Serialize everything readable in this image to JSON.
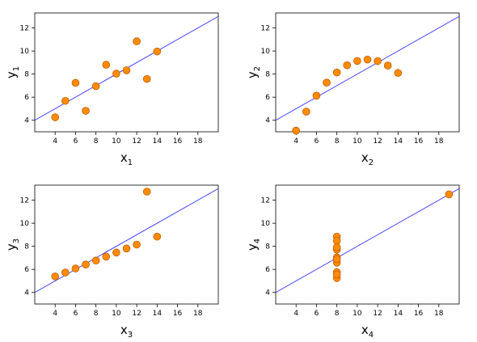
{
  "chart_data": [
    {
      "type": "scatter",
      "xlabel": "x",
      "xlabel_sub": "1",
      "ylabel": "y",
      "ylabel_sub": "1",
      "xlim": [
        2,
        20
      ],
      "ylim": [
        3,
        13.3
      ],
      "xticks": [
        4,
        6,
        8,
        10,
        12,
        14,
        16,
        18
      ],
      "yticks": [
        4,
        6,
        8,
        10,
        12
      ],
      "x": [
        4,
        5,
        6,
        7,
        8,
        9,
        10,
        11,
        12,
        13,
        14
      ],
      "y": [
        4.26,
        5.68,
        7.24,
        4.82,
        6.95,
        8.81,
        8.04,
        8.33,
        10.84,
        7.58,
        9.96
      ],
      "regression": {
        "intercept": 3.0,
        "slope": 0.5
      },
      "point_color": "#ff8c00",
      "line_color": "#3333ff",
      "grid": false
    },
    {
      "type": "scatter",
      "xlabel": "x",
      "xlabel_sub": "2",
      "ylabel": "y",
      "ylabel_sub": "2",
      "xlim": [
        2,
        20
      ],
      "ylim": [
        3,
        13.3
      ],
      "xticks": [
        4,
        6,
        8,
        10,
        12,
        14,
        16,
        18
      ],
      "yticks": [
        4,
        6,
        8,
        10,
        12
      ],
      "x": [
        4,
        5,
        6,
        7,
        8,
        9,
        10,
        11,
        12,
        13,
        14
      ],
      "y": [
        3.1,
        4.74,
        6.13,
        7.26,
        8.14,
        8.77,
        9.14,
        9.26,
        9.13,
        8.74,
        8.1
      ],
      "regression": {
        "intercept": 3.0,
        "slope": 0.5
      },
      "point_color": "#ff8c00",
      "line_color": "#3333ff",
      "grid": false
    },
    {
      "type": "scatter",
      "xlabel": "x",
      "xlabel_sub": "3",
      "ylabel": "y",
      "ylabel_sub": "3",
      "xlim": [
        2,
        20
      ],
      "ylim": [
        3,
        13.3
      ],
      "xticks": [
        4,
        6,
        8,
        10,
        12,
        14,
        16,
        18
      ],
      "yticks": [
        4,
        6,
        8,
        10,
        12
      ],
      "x": [
        4,
        5,
        6,
        7,
        8,
        9,
        10,
        11,
        12,
        13,
        14
      ],
      "y": [
        5.39,
        5.73,
        6.08,
        6.42,
        6.77,
        7.11,
        7.46,
        7.81,
        8.15,
        12.74,
        8.84
      ],
      "regression": {
        "intercept": 3.0,
        "slope": 0.5
      },
      "point_color": "#ff8c00",
      "line_color": "#3333ff",
      "grid": false
    },
    {
      "type": "scatter",
      "xlabel": "x",
      "xlabel_sub": "4",
      "ylabel": "y",
      "ylabel_sub": "4",
      "xlim": [
        2,
        20
      ],
      "ylim": [
        3,
        13.3
      ],
      "xticks": [
        4,
        6,
        8,
        10,
        12,
        14,
        16,
        18
      ],
      "yticks": [
        4,
        6,
        8,
        10,
        12
      ],
      "x": [
        8,
        8,
        8,
        8,
        8,
        8,
        8,
        19,
        8,
        8,
        8
      ],
      "y": [
        6.58,
        5.76,
        7.71,
        8.84,
        8.47,
        7.04,
        5.25,
        12.5,
        5.56,
        7.91,
        6.89
      ],
      "regression": {
        "intercept": 3.0,
        "slope": 0.5
      },
      "point_color": "#ff8c00",
      "line_color": "#3333ff",
      "grid": false
    }
  ]
}
